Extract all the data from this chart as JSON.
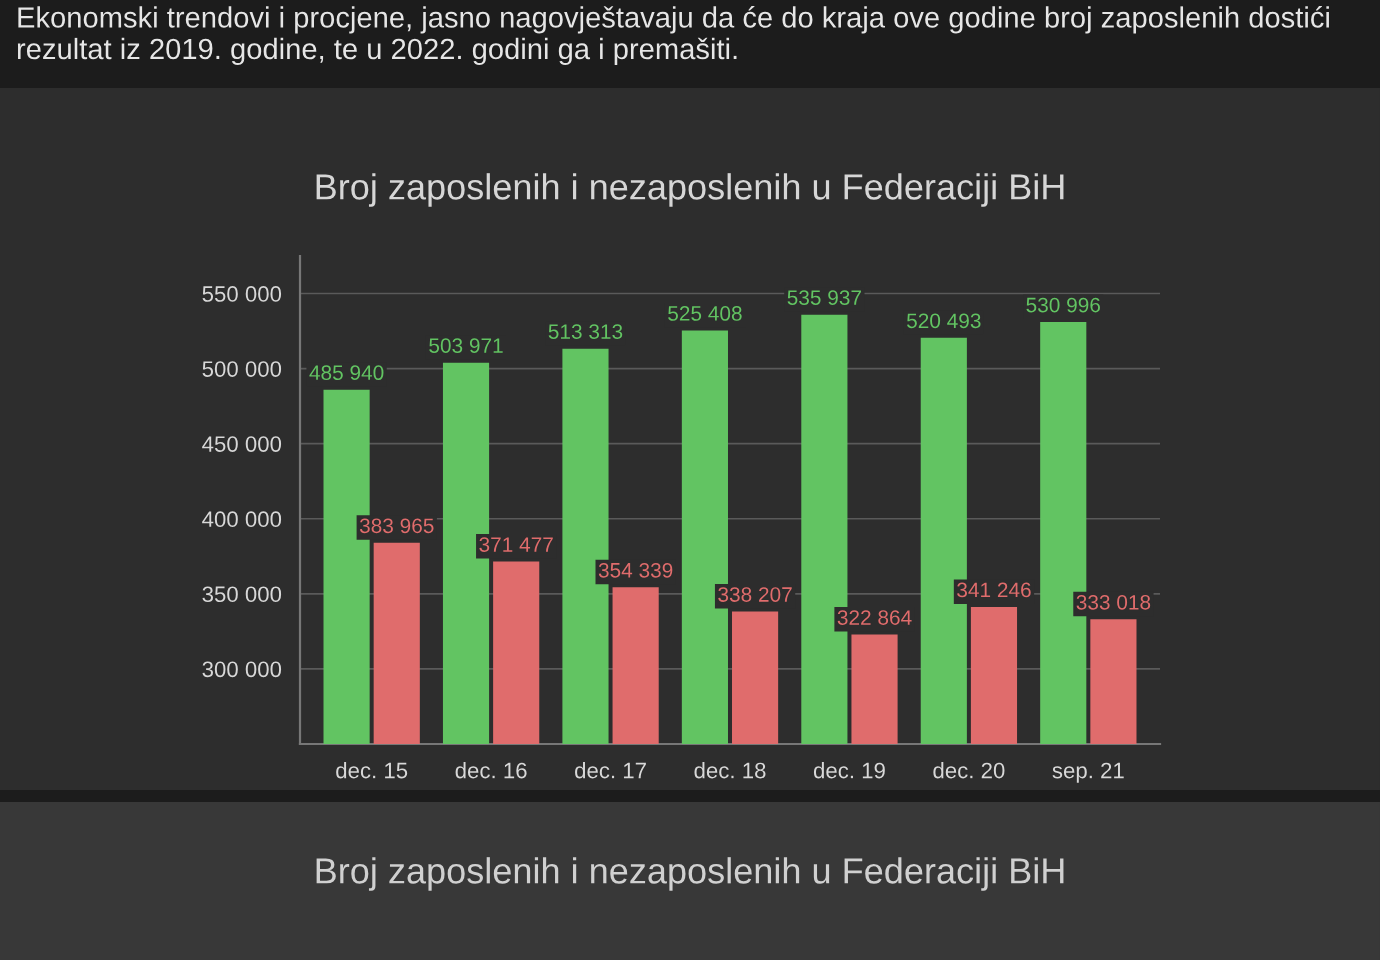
{
  "chart_data": {
    "type": "bar",
    "title": "Broj zaposlenih i nezaposlenih u Federaciji BiH",
    "categories": [
      "dec. 15",
      "dec. 16",
      "dec. 17",
      "dec. 18",
      "dec. 19",
      "dec. 20",
      "sep. 21"
    ],
    "series": [
      {
        "color": "#62c462",
        "values": [
          485940,
          503971,
          513313,
          525408,
          535937,
          520493,
          530996
        ],
        "value_labels": [
          "485 940",
          "503 971",
          "513 313",
          "525 408",
          "535 937",
          "520 493",
          "530 996"
        ]
      },
      {
        "color": "#e06c6c",
        "values": [
          383965,
          371477,
          354339,
          338207,
          322864,
          341246,
          333018
        ],
        "value_labels": [
          "383 965",
          "371 477",
          "354 339",
          "338 207",
          "322 864",
          "341 246",
          "333 018"
        ]
      }
    ],
    "ylim": [
      250000,
      575000
    ],
    "yticks": [
      {
        "value": 300000,
        "label": "300 000"
      },
      {
        "value": 350000,
        "label": "350 000"
      },
      {
        "value": 400000,
        "label": "400 000"
      },
      {
        "value": 450000,
        "label": "450 000"
      },
      {
        "value": 500000,
        "label": "500 000"
      },
      {
        "value": 550000,
        "label": "550 000"
      }
    ],
    "grid": "y",
    "annotations": [
      "Ekonomski trendovi i procjene, jasno nagovještavaju da će do kraja ove godine broj zaposlenih dostići rezultat iz 2019. godine, te u 2022. godini ga i premašiti.",
      "Broj zaposlenih i nezaposlenih u Federaciji BiH"
    ]
  }
}
